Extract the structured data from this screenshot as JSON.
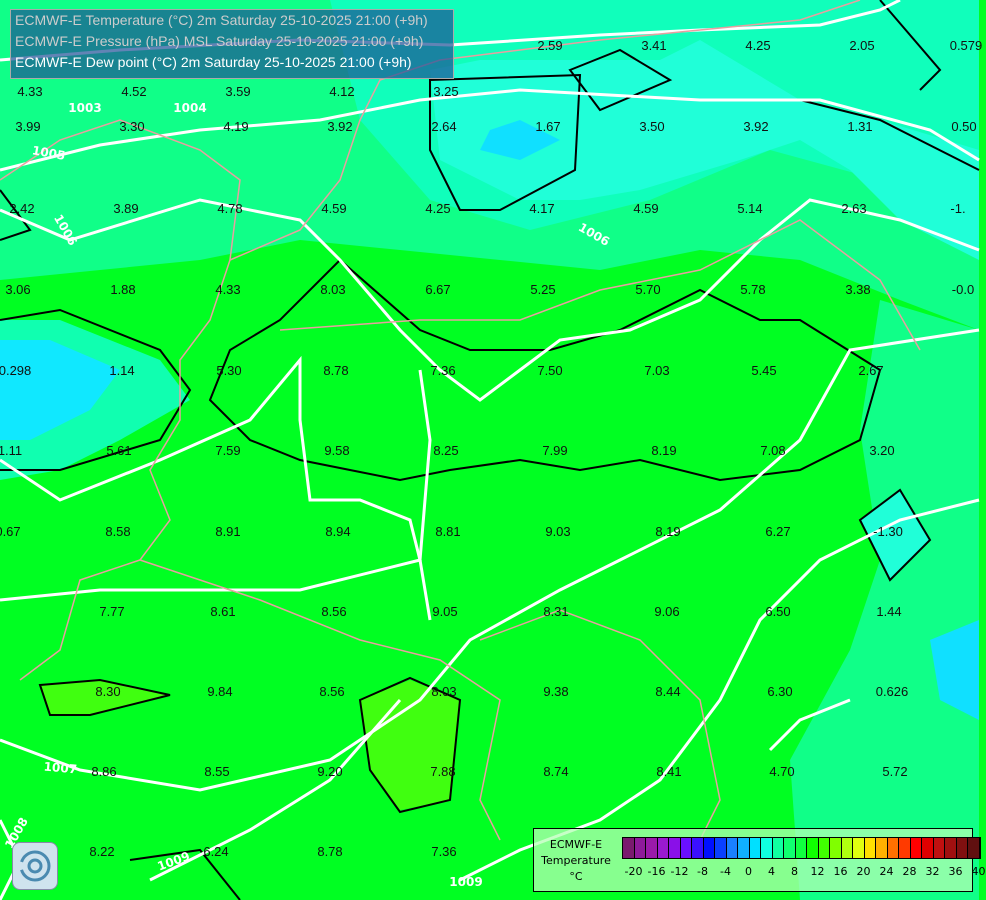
{
  "header": {
    "layers": [
      "ECMWF-E Temperature (°C) 2m Saturday 25-10-2025 21:00 (+9h)",
      "ECMWF-E Pressure (hPa) MSL Saturday 25-10-2025 21:00 (+9h)",
      "ECMWF-E Dew point (°C) 2m Saturday 25-10-2025 21:00 (+9h)"
    ],
    "active_layer": 2
  },
  "legend": {
    "title_lines": [
      "ECMWF-E",
      "Temperature",
      "°C"
    ],
    "colors": [
      "#7a1a6e",
      "#8e1a9a",
      "#9a1aaa",
      "#9a1ad0",
      "#8a10e8",
      "#6a10ff",
      "#3a10ff",
      "#0010ff",
      "#0a40ff",
      "#1a80ff",
      "#10b0ff",
      "#00e0ff",
      "#10ffe0",
      "#10ffa0",
      "#10ff70",
      "#10ff40",
      "#10ff00",
      "#40ff00",
      "#80ff00",
      "#b0ff10",
      "#e0ff10",
      "#ffe000",
      "#ffb000",
      "#ff7000",
      "#ff3a00",
      "#ff0000",
      "#e00000",
      "#c01010",
      "#a01010",
      "#801010",
      "#601010"
    ],
    "ticks": [
      "-20",
      "-16",
      "-12",
      "-8",
      "-4",
      "0",
      "4",
      "8",
      "12",
      "16",
      "20",
      "24",
      "28",
      "32",
      "36",
      "40"
    ]
  },
  "map": {
    "point_values": [
      "4.33",
      "4.52",
      "3.59",
      "4.12",
      "3.25",
      "2.59",
      "3.41",
      "4.25",
      "2.05",
      "0.579",
      "3.99",
      "3.30",
      "4.19",
      "3.92",
      "2.64",
      "1.67",
      "3.50",
      "3.92",
      "1.31",
      "0.50",
      "2.42",
      "3.89",
      "4.78",
      "4.59",
      "4.25",
      "4.17",
      "4.59",
      "5.14",
      "2.63",
      "-1.",
      "3.06",
      "1.88",
      "4.33",
      "8.03",
      "6.67",
      "5.25",
      "5.70",
      "5.78",
      "3.38",
      "-0.0",
      "0.298",
      "1.14",
      "5.30",
      "8.78",
      "7.36",
      "7.50",
      "7.03",
      "5.45",
      "2.67",
      "1.11",
      "5.61",
      "7.59",
      "9.58",
      "8.25",
      "7.99",
      "8.19",
      "7.08",
      "3.20",
      "0.67",
      "8.58",
      "8.91",
      "8.94",
      "8.81",
      "9.03",
      "8.19",
      "6.27",
      "-1.30",
      "7.77",
      "8.61",
      "8.56",
      "9.05",
      "8.31",
      "9.06",
      "6.50",
      "1.44",
      "8.30",
      "9.84",
      "8.56",
      "8.03",
      "9.38",
      "8.44",
      "6.30",
      "0.626",
      "8.86",
      "8.55",
      "9.20",
      "7.88",
      "8.74",
      "8.41",
      "4.70",
      "5.72",
      "8.22",
      "6.24",
      "8.78",
      "7.36"
    ],
    "isobar_labels": [
      "1003",
      "1004",
      "1005",
      "1006",
      "1006",
      "1007",
      "1008",
      "1009",
      "1009"
    ]
  }
}
